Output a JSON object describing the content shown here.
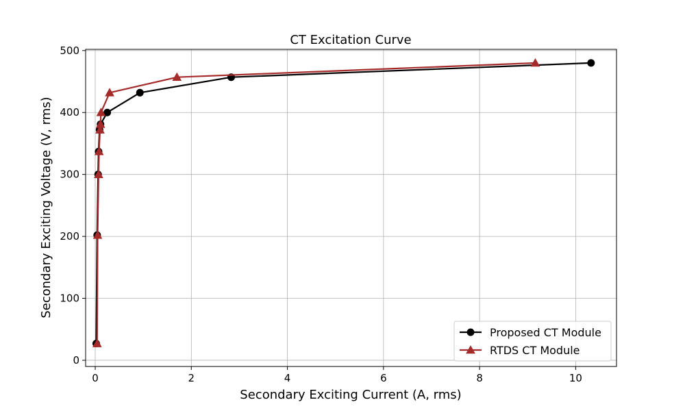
{
  "chart_data": {
    "type": "line",
    "title": "CT Excitation Curve",
    "xlabel": "Secondary Exciting Current (A, rms)",
    "ylabel": "Secondary Exciting Voltage (V, rms)",
    "xlim": [
      -0.2,
      10.85
    ],
    "ylim": [
      -10,
      502
    ],
    "xticks": [
      0,
      2,
      4,
      6,
      8,
      10
    ],
    "yticks": [
      0,
      100,
      200,
      300,
      400,
      500
    ],
    "grid": true,
    "legend_position": "bottom-right",
    "series": [
      {
        "name": "Proposed CT Module",
        "color": "#000000",
        "marker": "circle",
        "points": [
          [
            0.02,
            27
          ],
          [
            0.04,
            202
          ],
          [
            0.06,
            300
          ],
          [
            0.07,
            337
          ],
          [
            0.09,
            372
          ],
          [
            0.11,
            381
          ],
          [
            0.25,
            400
          ],
          [
            0.93,
            432
          ],
          [
            2.83,
            457
          ],
          [
            10.32,
            480
          ]
        ]
      },
      {
        "name": "RTDS CT Module",
        "color": "#a52a2a",
        "marker": "triangle",
        "points": [
          [
            0.04,
            27
          ],
          [
            0.05,
            202
          ],
          [
            0.07,
            300
          ],
          [
            0.08,
            337
          ],
          [
            0.1,
            372
          ],
          [
            0.11,
            381
          ],
          [
            0.12,
            400
          ],
          [
            0.3,
            432
          ],
          [
            1.7,
            457
          ],
          [
            9.16,
            480
          ]
        ]
      }
    ]
  }
}
